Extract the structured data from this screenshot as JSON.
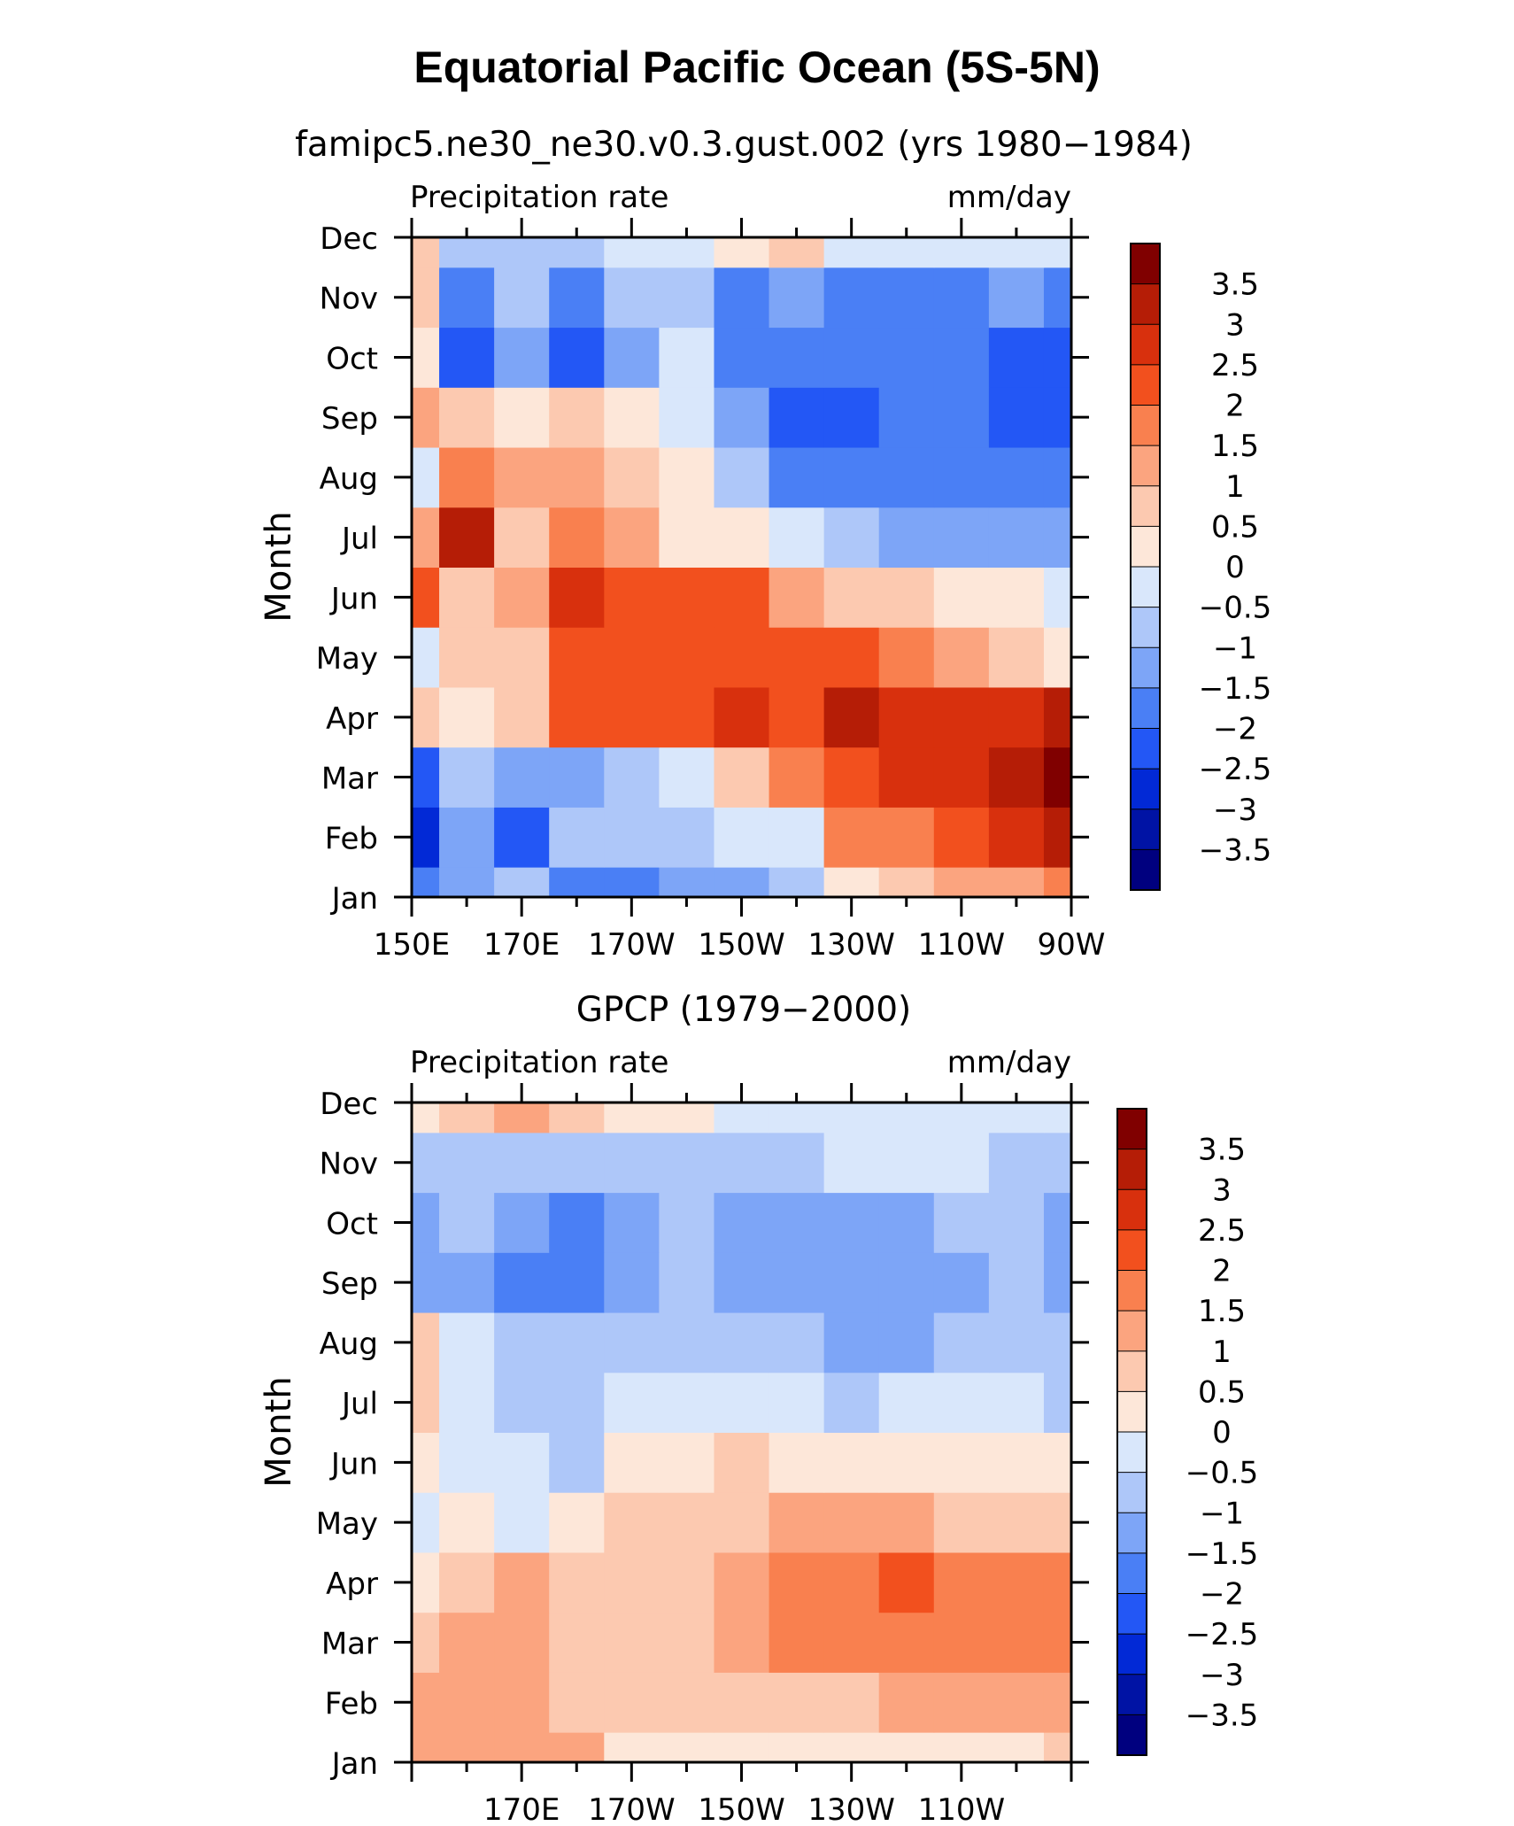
{
  "title": "Equatorial Pacific Ocean (5S-5N)",
  "colorbar_levels": [
    "3.5",
    "3",
    "2.5",
    "2",
    "1.5",
    "1",
    "0.5",
    "0",
    "−0.5",
    "−1",
    "−1.5",
    "−2",
    "−2.5",
    "−3",
    "−3.5"
  ],
  "colors": [
    "#00007f",
    "#0013a5",
    "#0229d6",
    "#2357f5",
    "#4a7ff5",
    "#7da5f7",
    "#aec7f9",
    "#d9e7fb",
    "#fde7d9",
    "#fcc9b0",
    "#fba47f",
    "#f9804f",
    "#f2501e",
    "#d8300d",
    "#b51d06",
    "#800000"
  ],
  "chart_data": [
    {
      "type": "heatmap",
      "subtitle": "famipc5.ne30_ne30.v0.3.gust.002 (yrs 1980−1984)",
      "left_label": "Precipitation rate",
      "right_label": "mm/day",
      "ylabel": "Month",
      "x_ticks": [
        "150E",
        "170E",
        "170W",
        "150W",
        "130W",
        "110W",
        "90W"
      ],
      "y_ticks": [
        "Jan",
        "Feb",
        "Mar",
        "Apr",
        "May",
        "Jun",
        "Jul",
        "Aug",
        "Sep",
        "Oct",
        "Nov",
        "Dec"
      ],
      "xlim": [
        "150E",
        "90W"
      ],
      "grid_columns": [
        "150E",
        "160E",
        "170E",
        "180",
        "170W",
        "160W",
        "150W",
        "140W",
        "130W",
        "120W",
        "110W",
        "100W",
        "90W"
      ],
      "values": [
        [
          -1.8,
          -1.2,
          -0.9,
          -1.6,
          -1.8,
          -1.3,
          -1.1,
          -0.6,
          0.3,
          0.9,
          1.1,
          1.4,
          1.9
        ],
        [
          -2.6,
          -1.3,
          -2.3,
          -0.8,
          -0.9,
          -0.9,
          -0.5,
          -0.3,
          1.5,
          1.7,
          2.2,
          2.6,
          3.0
        ],
        [
          -2.2,
          -0.8,
          -1.2,
          -1.3,
          -0.9,
          -0.3,
          0.5,
          1.9,
          2.3,
          2.8,
          2.9,
          3.1,
          3.7
        ],
        [
          0.6,
          0.3,
          0.7,
          2.0,
          2.2,
          2.1,
          2.9,
          2.2,
          3.2,
          2.9,
          2.8,
          2.6,
          3.1
        ],
        [
          -0.3,
          0.6,
          0.9,
          2.3,
          2.1,
          2.2,
          2.4,
          2.3,
          2.3,
          1.9,
          1.2,
          0.6,
          0.3
        ],
        [
          2.2,
          0.9,
          1.1,
          2.7,
          2.3,
          2.4,
          2.0,
          1.4,
          0.8,
          0.5,
          0.1,
          0.0,
          -0.3
        ],
        [
          1.1,
          3.2,
          0.9,
          1.6,
          1.3,
          0.4,
          0.0,
          -0.5,
          -0.9,
          -1.1,
          -1.3,
          -1.2,
          -1.5
        ],
        [
          -0.4,
          1.5,
          1.3,
          1.1,
          0.6,
          0.2,
          -0.6,
          -1.7,
          -1.9,
          -1.8,
          -1.9,
          -1.8,
          -2.0
        ],
        [
          1.1,
          0.8,
          0.3,
          0.6,
          0.1,
          -0.2,
          -1.5,
          -2.2,
          -2.1,
          -1.8,
          -1.9,
          -2.3,
          -2.2
        ],
        [
          0.4,
          -2.4,
          -1.2,
          -2.1,
          -1.5,
          -0.4,
          -1.8,
          -1.9,
          -1.8,
          -1.9,
          -1.8,
          -2.2,
          -2.4
        ],
        [
          0.5,
          -1.8,
          -0.6,
          -1.9,
          -0.9,
          -0.6,
          -1.6,
          -1.5,
          -1.6,
          -1.7,
          -1.6,
          -1.5,
          -2.0
        ],
        [
          0.6,
          -0.7,
          -0.6,
          -0.8,
          -0.3,
          -0.4,
          0.2,
          0.6,
          -0.1,
          -0.3,
          -0.2,
          -0.4,
          -0.3
        ]
      ]
    },
    {
      "type": "heatmap",
      "subtitle": "GPCP (1979−2000)",
      "left_label": "Precipitation rate",
      "right_label": "mm/day",
      "ylabel": "Month",
      "x_ticks": [
        "170E",
        "170W",
        "150W",
        "130W",
        "110W"
      ],
      "y_ticks": [
        "Jan",
        "Feb",
        "Mar",
        "Apr",
        "May",
        "Jun",
        "Jul",
        "Aug",
        "Sep",
        "Oct",
        "Nov",
        "Dec"
      ],
      "xlim": [
        "150E",
        "90W"
      ],
      "grid_columns": [
        "150E",
        "160E",
        "170E",
        "180",
        "170W",
        "160W",
        "150W",
        "140W",
        "130W",
        "120W",
        "110W",
        "100W",
        "90W"
      ],
      "values": [
        [
          1.2,
          1.3,
          1.4,
          1.2,
          0.4,
          0.3,
          0.4,
          0.3,
          0.2,
          0.3,
          0.3,
          0.4,
          0.6
        ],
        [
          1.1,
          1.2,
          1.3,
          0.9,
          0.5,
          0.5,
          0.8,
          0.9,
          0.9,
          1.1,
          1.2,
          1.3,
          1.4
        ],
        [
          0.9,
          1.2,
          1.4,
          0.9,
          0.5,
          0.7,
          1.2,
          1.5,
          1.7,
          1.8,
          1.6,
          1.8,
          1.7
        ],
        [
          0.4,
          0.8,
          1.0,
          0.7,
          0.9,
          0.9,
          1.2,
          1.6,
          1.9,
          2.0,
          1.8,
          1.9,
          1.7
        ],
        [
          -0.3,
          0.1,
          -0.2,
          0.3,
          0.6,
          0.9,
          0.9,
          1.0,
          1.1,
          1.0,
          0.9,
          0.7,
          0.6
        ],
        [
          0.4,
          -0.2,
          -0.3,
          -0.6,
          0.2,
          0.4,
          0.5,
          0.4,
          0.3,
          0.2,
          0.1,
          0.0,
          0.0
        ],
        [
          0.5,
          -0.3,
          -0.6,
          -0.7,
          -0.5,
          -0.3,
          -0.2,
          -0.4,
          -0.6,
          -0.5,
          -0.4,
          -0.4,
          -0.9
        ],
        [
          0.6,
          -0.4,
          -0.7,
          -0.8,
          -0.9,
          -0.8,
          -0.8,
          -1.0,
          -1.1,
          -1.1,
          -0.9,
          -0.6,
          -0.9
        ],
        [
          -1.2,
          -1.3,
          -1.7,
          -1.6,
          -1.1,
          -0.9,
          -1.3,
          -1.3,
          -1.2,
          -1.3,
          -1.1,
          -0.8,
          -1.1
        ],
        [
          -1.1,
          -1.0,
          -1.5,
          -1.8,
          -1.2,
          -0.9,
          -1.2,
          -1.3,
          -1.3,
          -1.2,
          -0.9,
          -0.7,
          -1.2
        ],
        [
          -1.0,
          -0.7,
          -0.7,
          -0.8,
          -0.8,
          -0.7,
          -0.7,
          -0.6,
          -0.5,
          -0.5,
          -0.5,
          -0.6,
          -0.8
        ],
        [
          0.3,
          0.6,
          1.3,
          0.8,
          0.4,
          0.1,
          -0.2,
          -0.2,
          -0.3,
          -0.3,
          -0.3,
          -0.3,
          -0.4
        ]
      ]
    }
  ]
}
